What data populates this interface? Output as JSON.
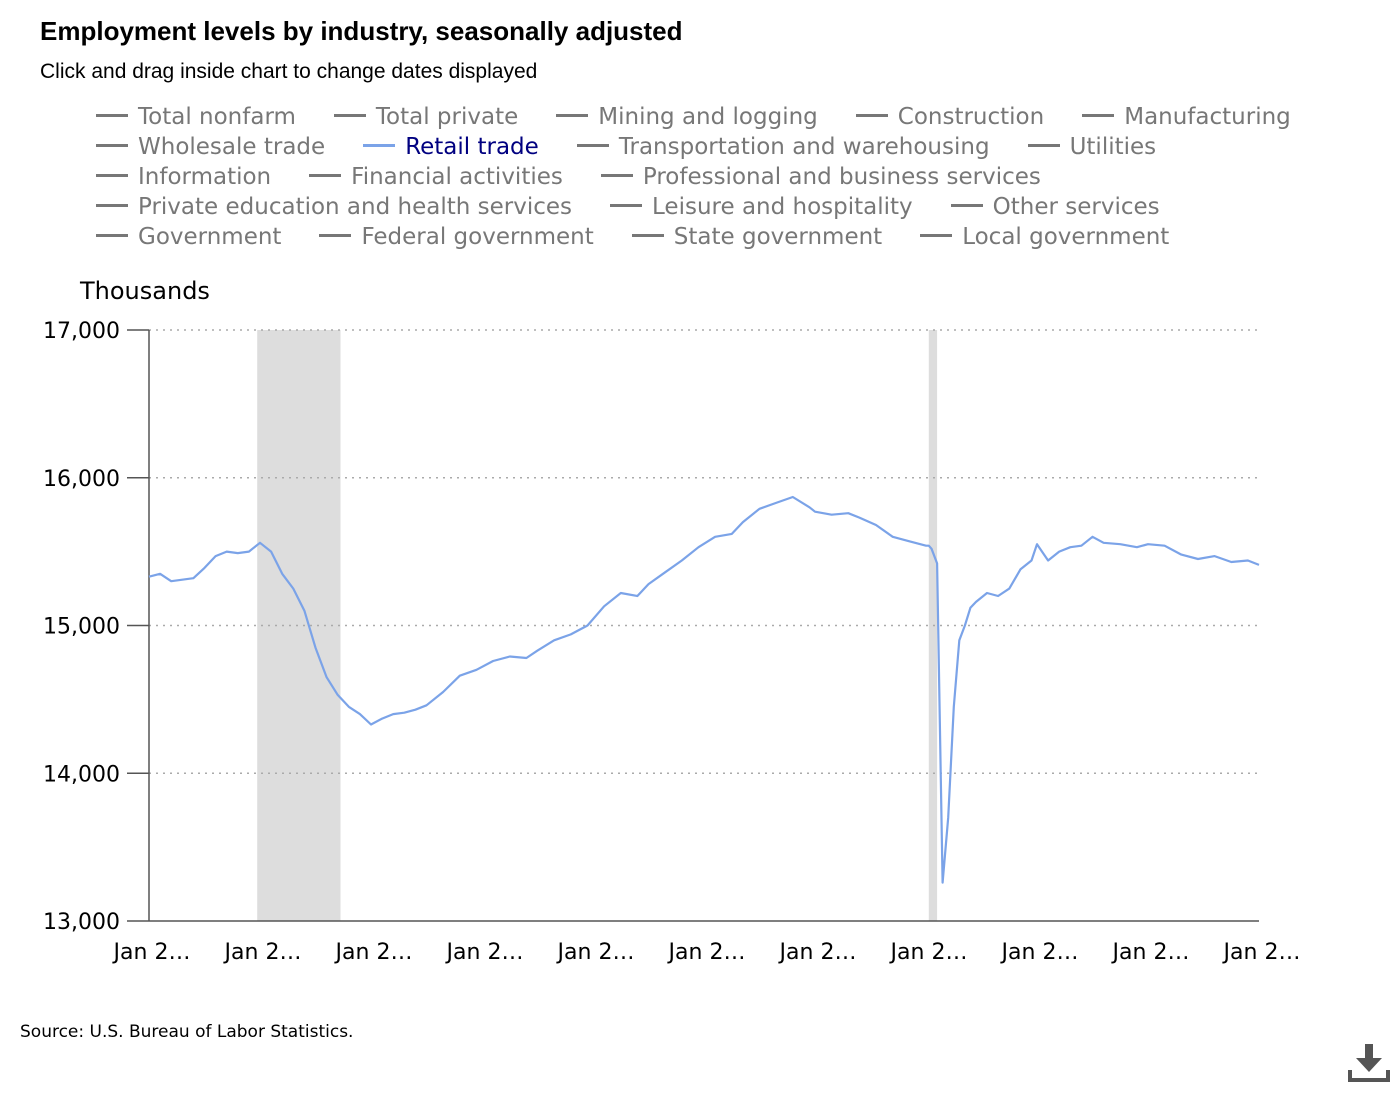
{
  "title": "Employment levels by industry, seasonally adjusted",
  "subtitle": "Click and drag inside chart to change dates displayed",
  "source": "Source: U.S. Bureau of Labor Statistics.",
  "download_icon": "download-icon",
  "colors": {
    "line": "#7ba3e8",
    "recession": "#dddddd",
    "legend_inactive": "#777777",
    "legend_active": "#000080",
    "grid": "#aaaaaa"
  },
  "legend": {
    "rows": [
      [
        {
          "label": "Total nonfarm",
          "active": false
        },
        {
          "label": "Total private",
          "active": false
        },
        {
          "label": "Mining and logging",
          "active": false
        },
        {
          "label": "Construction",
          "active": false
        },
        {
          "label": "Manufacturing",
          "active": false
        }
      ],
      [
        {
          "label": "Wholesale trade",
          "active": false
        },
        {
          "label": "Retail trade",
          "active": true
        },
        {
          "label": "Transportation and warehousing",
          "active": false
        },
        {
          "label": "Utilities",
          "active": false
        }
      ],
      [
        {
          "label": "Information",
          "active": false
        },
        {
          "label": "Financial activities",
          "active": false
        },
        {
          "label": "Professional and business services",
          "active": false
        }
      ],
      [
        {
          "label": "Private education and health services",
          "active": false
        },
        {
          "label": "Leisure and hospitality",
          "active": false
        },
        {
          "label": "Other services",
          "active": false
        }
      ],
      [
        {
          "label": "Government",
          "active": false
        },
        {
          "label": "Federal government",
          "active": false
        },
        {
          "label": "State government",
          "active": false
        },
        {
          "label": "Local government",
          "active": false
        }
      ]
    ]
  },
  "chart_data": {
    "type": "line",
    "title": "Employment levels by industry, seasonally adjusted",
    "ylabel": "Thousands",
    "xlabel": "",
    "ylim": [
      13000,
      17000
    ],
    "yticks": [
      13000,
      14000,
      15000,
      16000,
      17000
    ],
    "ytick_labels": [
      "13,000",
      "14,000",
      "15,000",
      "16,000",
      "17,000"
    ],
    "xlim": [
      2005,
      2025
    ],
    "xticks": [
      2005,
      2007,
      2009,
      2011,
      2013,
      2015,
      2017,
      2019,
      2021,
      2023,
      2025
    ],
    "xtick_labels": [
      "Jan 2…",
      "Jan 2…",
      "Jan 2…",
      "Jan 2…",
      "Jan 2…",
      "Jan 2…",
      "Jan 2…",
      "Jan 2…",
      "Jan 2…",
      "Jan 2…",
      "Jan 2…"
    ],
    "grid": true,
    "recessions": [
      {
        "start": 2006.95,
        "end": 2008.45
      },
      {
        "start": 2019.05,
        "end": 2019.2
      }
    ],
    "series": [
      {
        "name": "Retail trade",
        "x": [
          2005.0,
          2005.2,
          2005.4,
          2005.6,
          2005.8,
          2006.0,
          2006.2,
          2006.4,
          2006.6,
          2006.8,
          2007.0,
          2007.2,
          2007.4,
          2007.6,
          2007.8,
          2008.0,
          2008.2,
          2008.4,
          2008.6,
          2008.8,
          2009.0,
          2009.2,
          2009.4,
          2009.6,
          2009.8,
          2010.0,
          2010.3,
          2010.6,
          2010.9,
          2011.2,
          2011.5,
          2011.8,
          2012.0,
          2012.3,
          2012.6,
          2012.9,
          2013.2,
          2013.5,
          2013.8,
          2014.0,
          2014.3,
          2014.6,
          2014.9,
          2015.2,
          2015.5,
          2015.7,
          2016.0,
          2016.3,
          2016.6,
          2016.9,
          2017.0,
          2017.3,
          2017.6,
          2017.8,
          2018.1,
          2018.4,
          2018.7,
          2019.0,
          2019.05,
          2019.1,
          2019.2,
          2019.3,
          2019.4,
          2019.5,
          2019.6,
          2019.7,
          2019.8,
          2019.9,
          2020.1,
          2020.3,
          2020.5,
          2020.7,
          2020.9,
          2021.0,
          2021.2,
          2021.4,
          2021.6,
          2021.8,
          2022.0,
          2022.2,
          2022.5,
          2022.8,
          2023.0,
          2023.3,
          2023.6,
          2023.9,
          2024.2,
          2024.5,
          2024.8,
          2025.0
        ],
        "values": [
          15330,
          15350,
          15300,
          15310,
          15320,
          15390,
          15470,
          15500,
          15490,
          15500,
          15560,
          15500,
          15350,
          15250,
          15100,
          14850,
          14650,
          14530,
          14450,
          14400,
          14330,
          14370,
          14400,
          14410,
          14430,
          14460,
          14550,
          14660,
          14700,
          14760,
          14790,
          14780,
          14830,
          14900,
          14940,
          15000,
          15130,
          15220,
          15200,
          15280,
          15360,
          15440,
          15530,
          15600,
          15620,
          15700,
          15790,
          15830,
          15870,
          15800,
          15770,
          15750,
          15760,
          15730,
          15680,
          15600,
          15570,
          15540,
          15540,
          15520,
          15420,
          13260,
          13700,
          14450,
          14900,
          15000,
          15120,
          15160,
          15220,
          15200,
          15250,
          15380,
          15440,
          15550,
          15440,
          15500,
          15530,
          15540,
          15600,
          15560,
          15550,
          15530,
          15550,
          15540,
          15480,
          15450,
          15470,
          15430,
          15440,
          15410
        ]
      }
    ]
  }
}
